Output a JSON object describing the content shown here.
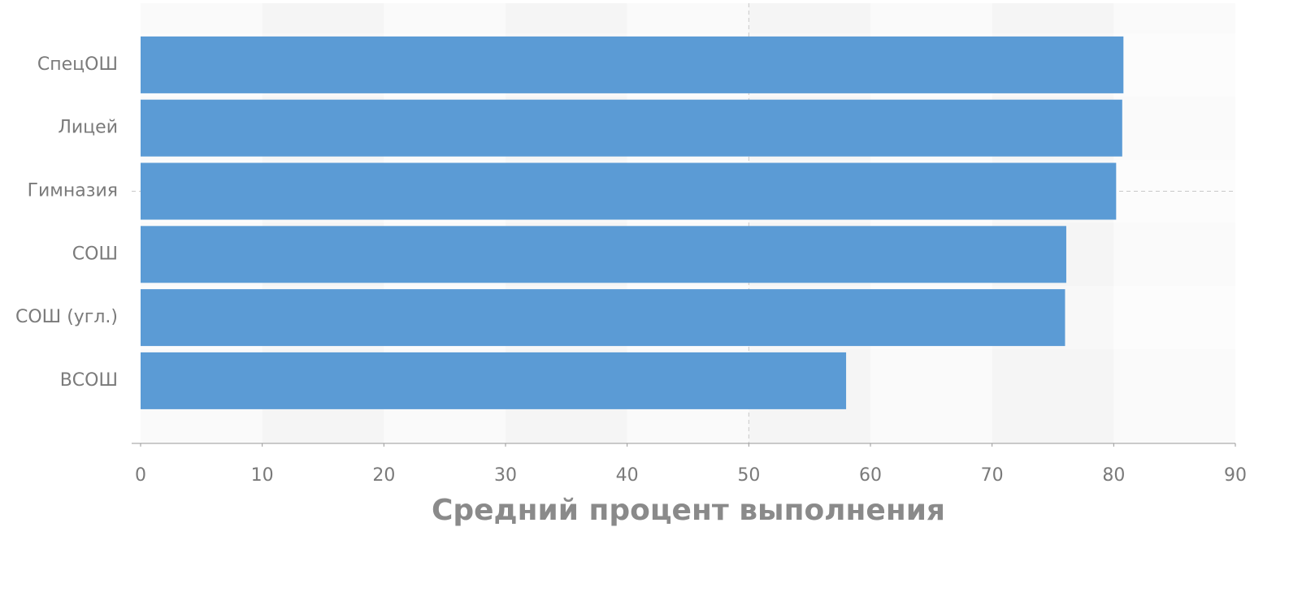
{
  "chart_data": {
    "type": "bar",
    "orientation": "horizontal",
    "x_label": "Средний процент выполнения",
    "categories": [
      "СпецОШ",
      "Лицей",
      "Гимназия",
      "СОШ",
      "СОШ (угл.)",
      "ВСОШ"
    ],
    "values": [
      80.8,
      80.7,
      80.2,
      76.1,
      76.0,
      58.0
    ],
    "color": "#5b9bd5",
    "xlim": [
      0,
      90
    ],
    "xticks": [
      0,
      10,
      20,
      30,
      40,
      50,
      60,
      70,
      80,
      90
    ]
  }
}
